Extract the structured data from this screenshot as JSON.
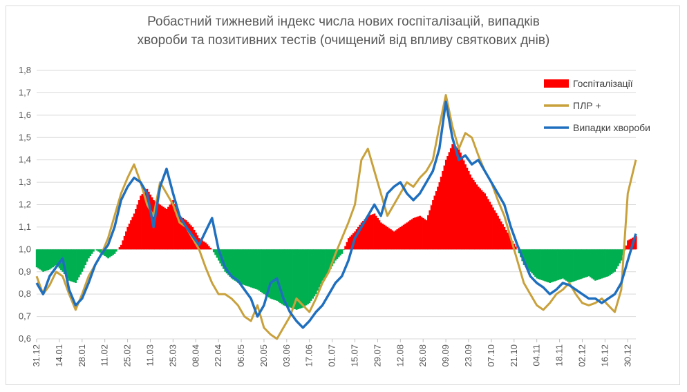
{
  "chart_data": {
    "type": "line",
    "title_line1": "Робастний тижневий індекс числа нових госпіталізацій, випадків",
    "title_line2": "хвороби та позитивних тестів (очищений від впливу святкових днів)",
    "xlabel": "",
    "ylabel": "",
    "ylim": [
      0.6,
      1.8
    ],
    "y_ticks": [
      "0,6",
      "0,7",
      "0,8",
      "0,9",
      "1,0",
      "1,1",
      "1,2",
      "1,3",
      "1,4",
      "1,5",
      "1,6",
      "1,7",
      "1,8"
    ],
    "x_tick_labels": [
      "31.12",
      "14.01",
      "28.01",
      "11.02",
      "25.02",
      "11.03",
      "25.03",
      "08.04",
      "22.04",
      "06.05",
      "20.05",
      "03.06",
      "17.06",
      "01.07",
      "15.07",
      "29.07",
      "12.08",
      "26.08",
      "09.09",
      "23.09",
      "07.10",
      "21.10",
      "04.11",
      "18.11",
      "02.12",
      "16.12",
      "30.12"
    ],
    "x_days_start_label": "31.12",
    "baseline": 1.0,
    "grid": true,
    "legend_position": "top-right",
    "colors": {
      "hospitalizations_above": "#ff0000",
      "hospitalizations_below": "#00b050",
      "plr": "#c9a13c",
      "cases": "#1f6fbf",
      "grid": "#d9d9d9"
    },
    "series": [
      {
        "name": "Госпіталізації",
        "x": [
          0,
          4,
          8,
          12,
          16,
          20,
          24,
          28,
          32,
          36,
          40,
          44,
          48,
          52,
          56,
          60,
          64,
          68,
          72,
          76,
          80,
          84,
          88,
          92,
          96,
          100,
          104,
          108,
          112,
          116,
          120,
          124,
          128,
          132,
          136,
          140,
          144,
          148,
          152,
          156,
          160,
          164,
          168,
          172,
          176,
          180,
          184,
          188,
          192,
          196,
          200,
          204,
          208,
          212,
          216,
          220,
          224,
          228,
          232,
          236,
          240,
          244,
          248,
          252,
          256,
          260,
          264,
          268,
          272,
          276,
          280,
          284,
          288,
          292,
          296,
          300,
          304,
          308,
          312,
          316,
          320,
          324,
          328,
          332,
          336,
          340,
          344,
          348,
          352,
          356,
          360,
          364,
          369
        ],
        "values": [
          0.92,
          0.9,
          0.91,
          0.93,
          0.9,
          0.86,
          0.85,
          0.9,
          0.96,
          1.0,
          0.98,
          0.96,
          0.98,
          1.02,
          1.1,
          1.16,
          1.24,
          1.27,
          1.22,
          1.2,
          1.18,
          1.22,
          1.15,
          1.13,
          1.1,
          1.05,
          1.03,
          1.0,
          0.95,
          0.9,
          0.87,
          0.85,
          0.84,
          0.83,
          0.82,
          0.8,
          0.78,
          0.77,
          0.75,
          0.74,
          0.73,
          0.74,
          0.76,
          0.8,
          0.86,
          0.9,
          0.95,
          0.98,
          1.05,
          1.08,
          1.12,
          1.15,
          1.16,
          1.12,
          1.1,
          1.08,
          1.1,
          1.12,
          1.14,
          1.15,
          1.13,
          1.22,
          1.3,
          1.4,
          1.47,
          1.45,
          1.38,
          1.32,
          1.28,
          1.25,
          1.2,
          1.15,
          1.1,
          1.05,
          1.0,
          0.93,
          0.9,
          0.87,
          0.86,
          0.85,
          0.86,
          0.87,
          0.85,
          0.86,
          0.87,
          0.88,
          0.86,
          0.87,
          0.88,
          0.9,
          0.95,
          1.04,
          1.06
        ]
      },
      {
        "name": "ПЛР +",
        "x": [
          0,
          4,
          8,
          12,
          16,
          20,
          24,
          28,
          32,
          36,
          40,
          44,
          48,
          52,
          56,
          60,
          64,
          68,
          72,
          76,
          80,
          84,
          88,
          92,
          96,
          100,
          104,
          108,
          112,
          116,
          120,
          124,
          128,
          132,
          136,
          140,
          144,
          148,
          152,
          156,
          160,
          164,
          168,
          172,
          176,
          180,
          184,
          188,
          192,
          196,
          200,
          204,
          208,
          212,
          216,
          220,
          224,
          228,
          232,
          236,
          240,
          244,
          248,
          252,
          256,
          260,
          264,
          268,
          272,
          276,
          280,
          284,
          288,
          292,
          296,
          300,
          304,
          308,
          312,
          316,
          320,
          324,
          328,
          332,
          336,
          340,
          344,
          348,
          352,
          356,
          360,
          364,
          369
        ],
        "values": [
          0.88,
          0.8,
          0.84,
          0.9,
          0.88,
          0.8,
          0.73,
          0.8,
          0.88,
          0.93,
          0.98,
          1.05,
          1.15,
          1.25,
          1.32,
          1.38,
          1.3,
          1.2,
          1.15,
          1.3,
          1.25,
          1.2,
          1.12,
          1.1,
          1.05,
          1.0,
          0.92,
          0.85,
          0.8,
          0.8,
          0.78,
          0.75,
          0.7,
          0.68,
          0.75,
          0.65,
          0.62,
          0.6,
          0.65,
          0.7,
          0.78,
          0.75,
          0.72,
          0.78,
          0.85,
          0.9,
          0.98,
          1.05,
          1.12,
          1.2,
          1.4,
          1.45,
          1.35,
          1.25,
          1.15,
          1.2,
          1.25,
          1.3,
          1.28,
          1.32,
          1.35,
          1.4,
          1.55,
          1.69,
          1.55,
          1.45,
          1.52,
          1.5,
          1.42,
          1.35,
          1.3,
          1.22,
          1.15,
          1.05,
          0.95,
          0.85,
          0.8,
          0.75,
          0.73,
          0.76,
          0.8,
          0.82,
          0.85,
          0.8,
          0.76,
          0.75,
          0.76,
          0.78,
          0.75,
          0.72,
          0.82,
          1.25,
          1.4
        ]
      },
      {
        "name": "Випадки хвороби",
        "x": [
          0,
          4,
          8,
          12,
          16,
          20,
          24,
          28,
          32,
          36,
          40,
          44,
          48,
          52,
          56,
          60,
          64,
          68,
          72,
          76,
          80,
          84,
          88,
          92,
          96,
          100,
          104,
          108,
          112,
          116,
          120,
          124,
          128,
          132,
          136,
          140,
          144,
          148,
          152,
          156,
          160,
          164,
          168,
          172,
          176,
          180,
          184,
          188,
          192,
          196,
          200,
          204,
          208,
          212,
          216,
          220,
          224,
          228,
          232,
          236,
          240,
          244,
          248,
          252,
          256,
          260,
          264,
          268,
          272,
          276,
          280,
          284,
          288,
          292,
          296,
          300,
          304,
          308,
          312,
          316,
          320,
          324,
          328,
          332,
          336,
          340,
          344,
          348,
          352,
          356,
          360,
          364,
          369
        ],
        "values": [
          0.85,
          0.8,
          0.88,
          0.92,
          0.96,
          0.82,
          0.75,
          0.78,
          0.85,
          0.93,
          0.98,
          1.02,
          1.1,
          1.22,
          1.28,
          1.32,
          1.3,
          1.25,
          1.1,
          1.28,
          1.36,
          1.25,
          1.15,
          1.1,
          1.06,
          1.02,
          1.08,
          1.14,
          1.0,
          0.92,
          0.88,
          0.86,
          0.82,
          0.78,
          0.7,
          0.75,
          0.85,
          0.87,
          0.78,
          0.72,
          0.68,
          0.65,
          0.68,
          0.72,
          0.75,
          0.8,
          0.85,
          0.88,
          0.95,
          1.05,
          1.1,
          1.15,
          1.2,
          1.15,
          1.25,
          1.28,
          1.3,
          1.25,
          1.22,
          1.25,
          1.3,
          1.35,
          1.45,
          1.66,
          1.5,
          1.4,
          1.42,
          1.38,
          1.4,
          1.35,
          1.3,
          1.25,
          1.2,
          1.1,
          1.02,
          0.95,
          0.88,
          0.85,
          0.83,
          0.8,
          0.82,
          0.85,
          0.84,
          0.82,
          0.8,
          0.78,
          0.78,
          0.76,
          0.78,
          0.8,
          0.85,
          0.95,
          1.07
        ]
      }
    ]
  }
}
